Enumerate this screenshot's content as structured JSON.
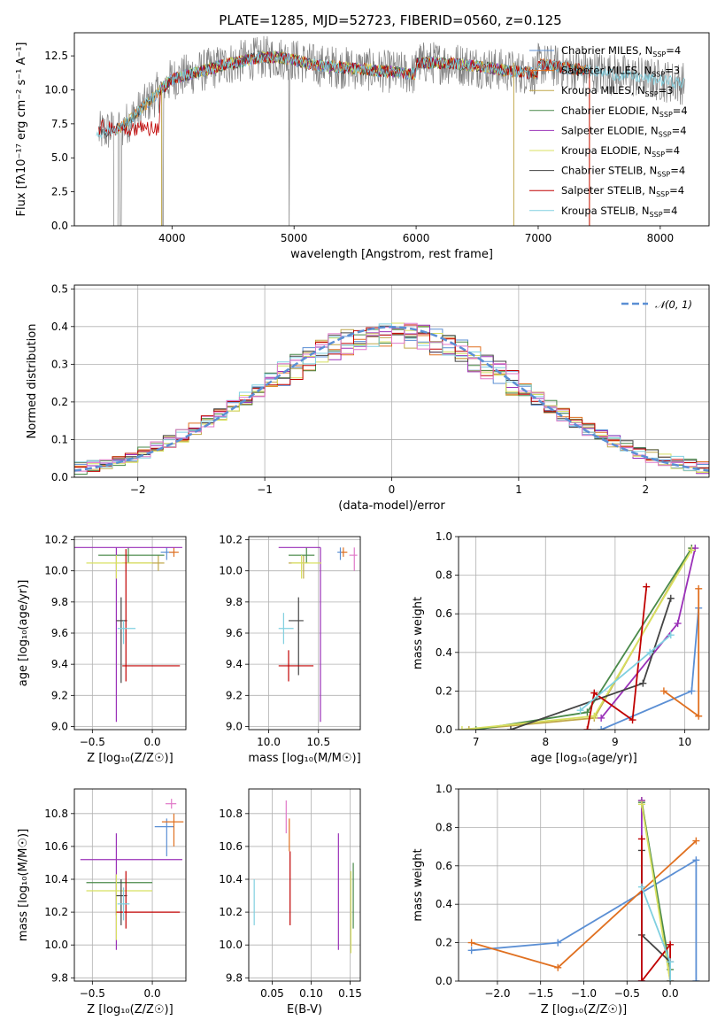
{
  "figure": {
    "title": "PLATE=1285, MJD=52723, FIBERID=0560, z=0.125"
  },
  "chart_data": [
    {
      "id": "spectrum",
      "type": "line",
      "xlabel": "wavelength [Angstrom, rest frame]",
      "ylabel": "Flux [fλ10⁻¹⁷ erg cm⁻² s⁻¹ A⁻¹]",
      "xlim": [
        3200,
        8400
      ],
      "ylim": [
        0,
        14.2
      ],
      "xticks": [
        4000,
        5000,
        6000,
        7000,
        8000
      ],
      "yticks": [
        0.0,
        2.5,
        5.0,
        7.5,
        10.0,
        12.5
      ],
      "grid": false,
      "legend_position": "top-right",
      "data_color": "#808080",
      "series": [
        {
          "name": "Chabrier MILES, N_SSP=4",
          "color": "#5b8fd4",
          "range": [
            3540,
            7400
          ]
        },
        {
          "name": "Salpeter MILES, N_SSP=3",
          "color": "#e07020",
          "range": [
            3540,
            7400
          ]
        },
        {
          "name": "Kroupa MILES, N_SSP=3",
          "color": "#c0a84a",
          "range": [
            3540,
            7400
          ]
        },
        {
          "name": "Chabrier ELODIE, N_SSP=4",
          "color": "#4a8a4a",
          "range": [
            3900,
            6800
          ]
        },
        {
          "name": "Salpeter ELODIE, N_SSP=4",
          "color": "#9a30b8",
          "range": [
            3900,
            6800
          ]
        },
        {
          "name": "Kroupa ELODIE, N_SSP=4",
          "color": "#d8e060",
          "range": [
            3900,
            6800
          ]
        },
        {
          "name": "Chabrier STELIB, N_SSP=4",
          "color": "#444444",
          "range": [
            3400,
            7400
          ]
        },
        {
          "name": "Salpeter STELIB, N_SSP=4",
          "color": "#c00000",
          "range": [
            3400,
            7400
          ]
        },
        {
          "name": "Kroupa STELIB, N_SSP=4",
          "color": "#80d0e0",
          "range": [
            3380,
            8200
          ]
        }
      ]
    },
    {
      "id": "residuals",
      "type": "histogram",
      "xlabel": "(data-model)/error",
      "ylabel": "Normed distribution",
      "xlim": [
        -2.5,
        2.5
      ],
      "ylim": [
        0,
        0.51
      ],
      "xticks": [
        -2,
        -1,
        0,
        1,
        2
      ],
      "yticks": [
        0.0,
        0.1,
        0.2,
        0.3,
        0.4,
        0.5
      ],
      "grid": true,
      "legend": {
        "label": "𝒩(0, 1)",
        "position": "top-right",
        "color": "#5b8fd4"
      },
      "bin_width": 0.1,
      "series_colors": [
        "#5b8fd4",
        "#e07020",
        "#c0a84a",
        "#4a8a4a",
        "#9a30b8",
        "#d8e060",
        "#444444",
        "#c00000",
        "#80d0e0",
        "#e078c8"
      ]
    },
    {
      "id": "age_vs_Z",
      "type": "errorbar",
      "xlabel": "Z [log₁₀(Z/Z☉)]",
      "ylabel": "age  [log₁₀(age/yr)]",
      "xlim": [
        -0.65,
        0.28
      ],
      "ylim": [
        8.98,
        10.22
      ],
      "xticks": [
        -0.5,
        0.0
      ],
      "yticks": [
        9.0,
        9.2,
        9.4,
        9.6,
        9.8,
        10.0,
        10.2
      ],
      "grid": true,
      "points": [
        {
          "x": 0.12,
          "y": 10.12,
          "xerr": [
            0.05,
            0.06
          ],
          "yerr": [
            0.05,
            0.03
          ],
          "color": "#5b8fd4"
        },
        {
          "x": 0.18,
          "y": 10.12,
          "xerr": [
            0.04,
            0.04
          ],
          "yerr": [
            0.03,
            0.03
          ],
          "color": "#e07020"
        },
        {
          "x": 0.05,
          "y": 10.05,
          "xerr": [
            0.3,
            0.05
          ],
          "yerr": [
            0.05,
            0.05
          ],
          "color": "#c0a84a"
        },
        {
          "x": -0.2,
          "y": 10.1,
          "xerr": [
            0.25,
            0.3
          ],
          "yerr": [
            0.05,
            0.05
          ],
          "color": "#4a8a4a"
        },
        {
          "x": -0.3,
          "y": 10.15,
          "xerr": [
            0.35,
            0.55
          ],
          "yerr": [
            1.12,
            0.0
          ],
          "color": "#9a30b8"
        },
        {
          "x": -0.3,
          "y": 10.05,
          "xerr": [
            0.25,
            0.3
          ],
          "yerr": [
            0.1,
            0.05
          ],
          "color": "#d8e060"
        },
        {
          "x": -0.26,
          "y": 9.68,
          "xerr": [
            0.04,
            0.05
          ],
          "yerr": [
            0.4,
            0.15
          ],
          "color": "#444444"
        },
        {
          "x": -0.22,
          "y": 9.39,
          "xerr": [
            0.03,
            0.45
          ],
          "yerr": [
            0.1,
            0.75
          ],
          "color": "#c00000"
        },
        {
          "x": -0.24,
          "y": 9.63,
          "xerr": [
            0.05,
            0.1
          ],
          "yerr": [
            0.1,
            0.05
          ],
          "color": "#80d0e0"
        }
      ]
    },
    {
      "id": "age_vs_mass",
      "type": "errorbar",
      "xlabel": "mass [log₁₀(M/M☉)]",
      "ylabel": "",
      "xlim": [
        9.8,
        10.92
      ],
      "ylim": [
        8.98,
        10.22
      ],
      "xticks": [
        10.0,
        10.5
      ],
      "yticks": [
        9.0,
        9.2,
        9.4,
        9.6,
        9.8,
        10.0,
        10.2
      ],
      "grid": true,
      "points": [
        {
          "x": 10.72,
          "y": 10.12,
          "xerr": [
            0.03,
            0.03
          ],
          "yerr": [
            0.05,
            0.03
          ],
          "color": "#5b8fd4"
        },
        {
          "x": 10.75,
          "y": 10.12,
          "xerr": [
            0.02,
            0.04
          ],
          "yerr": [
            0.03,
            0.03
          ],
          "color": "#e07020"
        },
        {
          "x": 10.86,
          "y": 10.1,
          "xerr": [
            0.05,
            0.03
          ],
          "yerr": [
            0.1,
            0.05
          ],
          "color": "#e078c8"
        },
        {
          "x": 10.35,
          "y": 10.05,
          "xerr": [
            0.15,
            0.05
          ],
          "yerr": [
            0.1,
            0.05
          ],
          "color": "#c0a84a"
        },
        {
          "x": 10.38,
          "y": 10.1,
          "xerr": [
            0.18,
            0.08
          ],
          "yerr": [
            0.05,
            0.05
          ],
          "color": "#4a8a4a"
        },
        {
          "x": 10.52,
          "y": 10.15,
          "xerr": [
            0.42,
            0.0
          ],
          "yerr": [
            1.12,
            0.0
          ],
          "color": "#9a30b8"
        },
        {
          "x": 10.33,
          "y": 10.05,
          "xerr": [
            0.1,
            0.2
          ],
          "yerr": [
            0.1,
            0.05
          ],
          "color": "#d8e060"
        },
        {
          "x": 10.3,
          "y": 9.68,
          "xerr": [
            0.1,
            0.05
          ],
          "yerr": [
            0.35,
            0.15
          ],
          "color": "#444444"
        },
        {
          "x": 10.2,
          "y": 9.39,
          "xerr": [
            0.1,
            0.25
          ],
          "yerr": [
            0.1,
            0.1
          ],
          "color": "#c00000"
        },
        {
          "x": 10.15,
          "y": 9.63,
          "xerr": [
            0.05,
            0.1
          ],
          "yerr": [
            0.1,
            0.1
          ],
          "color": "#80d0e0"
        }
      ]
    },
    {
      "id": "mass_weight_vs_age",
      "type": "line",
      "xlabel": "age  [log₁₀(age/yr)]",
      "ylabel": "mass weight",
      "xlim": [
        6.75,
        10.35
      ],
      "ylim": [
        0,
        1.0
      ],
      "xticks": [
        7,
        8,
        9,
        10
      ],
      "yticks": [
        0.0,
        0.2,
        0.4,
        0.6,
        0.8,
        1.0
      ],
      "grid": true,
      "series": [
        {
          "color": "#5b8fd4",
          "x": [
            8.8,
            10.1,
            10.2
          ],
          "y": [
            0.0,
            0.2,
            0.63
          ]
        },
        {
          "color": "#e07020",
          "x": [
            9.7,
            10.2,
            10.2
          ],
          "y": [
            0.2,
            0.07,
            0.73
          ]
        },
        {
          "color": "#c0a84a",
          "x": [
            6.9,
            8.7,
            10.1
          ],
          "y": [
            0.0,
            0.06,
            0.94
          ]
        },
        {
          "color": "#4a8a4a",
          "x": [
            7.0,
            8.6,
            10.1
          ],
          "y": [
            0.0,
            0.09,
            0.94
          ]
        },
        {
          "color": "#9a30b8",
          "x": [
            8.8,
            9.9,
            10.15
          ],
          "y": [
            0.06,
            0.55,
            0.94
          ]
        },
        {
          "color": "#d8e060",
          "x": [
            6.8,
            8.7,
            10.1
          ],
          "y": [
            0.0,
            0.07,
            0.93
          ]
        },
        {
          "color": "#444444",
          "x": [
            7.5,
            9.4,
            9.8
          ],
          "y": [
            0.0,
            0.24,
            0.68
          ]
        },
        {
          "color": "#c00000",
          "x": [
            8.6,
            8.7,
            9.25,
            9.45
          ],
          "y": [
            0.0,
            0.19,
            0.05,
            0.74
          ]
        },
        {
          "color": "#80d0e0",
          "x": [
            8.5,
            9.5,
            9.8
          ],
          "y": [
            0.1,
            0.4,
            0.49
          ]
        }
      ]
    },
    {
      "id": "mass_vs_Z",
      "type": "errorbar",
      "xlabel": "Z [log₁₀(Z/Z☉)]",
      "ylabel": "mass [log₁₀(M/M☉)]",
      "xlim": [
        -0.65,
        0.28
      ],
      "ylim": [
        9.78,
        10.95
      ],
      "xticks": [
        -0.5,
        0.0
      ],
      "yticks": [
        9.8,
        10.0,
        10.2,
        10.4,
        10.6,
        10.8
      ],
      "grid": true,
      "points": [
        {
          "x": 0.12,
          "y": 10.72,
          "xerr": [
            0.1,
            0.06
          ],
          "yerr": [
            0.18,
            0.05
          ],
          "color": "#5b8fd4"
        },
        {
          "x": 0.18,
          "y": 10.75,
          "xerr": [
            0.1,
            0.08
          ],
          "yerr": [
            0.15,
            0.05
          ],
          "color": "#e07020"
        },
        {
          "x": 0.16,
          "y": 10.86,
          "xerr": [
            0.05,
            0.04
          ],
          "yerr": [
            0.03,
            0.03
          ],
          "color": "#e078c8"
        },
        {
          "x": -0.3,
          "y": 10.38,
          "xerr": [
            0.25,
            0.3
          ],
          "yerr": [
            0.2,
            0.05
          ],
          "color": "#4a8a4a"
        },
        {
          "x": -0.3,
          "y": 10.52,
          "xerr": [
            0.3,
            0.55
          ],
          "yerr": [
            0.55,
            0.16
          ],
          "color": "#9a30b8"
        },
        {
          "x": -0.3,
          "y": 10.33,
          "xerr": [
            0.25,
            0.3
          ],
          "yerr": [
            0.3,
            0.1
          ],
          "color": "#d8e060"
        },
        {
          "x": -0.26,
          "y": 10.3,
          "xerr": [
            0.04,
            0.05
          ],
          "yerr": [
            0.18,
            0.1
          ],
          "color": "#444444"
        },
        {
          "x": -0.22,
          "y": 10.2,
          "xerr": [
            0.08,
            0.45
          ],
          "yerr": [
            0.1,
            0.25
          ],
          "color": "#c00000"
        },
        {
          "x": -0.24,
          "y": 10.25,
          "xerr": [
            0.05,
            0.05
          ],
          "yerr": [
            0.1,
            0.1
          ],
          "color": "#80d0e0"
        }
      ]
    },
    {
      "id": "mass_vs_EBV",
      "type": "errorbar",
      "xlabel": "E(B-V)",
      "ylabel": "",
      "xlim": [
        0.02,
        0.163
      ],
      "ylim": [
        9.78,
        10.95
      ],
      "xticks": [
        0.05,
        0.1,
        0.15
      ],
      "yticks": [
        9.8,
        10.0,
        10.2,
        10.4,
        10.6,
        10.8
      ],
      "grid": true,
      "points": [
        {
          "x": 0.068,
          "y": 10.78,
          "yerr": [
            0.1,
            0.1
          ],
          "color": "#e078c8"
        },
        {
          "x": 0.072,
          "y": 10.72,
          "yerr": [
            0.15,
            0.05
          ],
          "color": "#e07020"
        },
        {
          "x": 0.073,
          "y": 10.3,
          "yerr": [
            0.18,
            0.27
          ],
          "color": "#c00000"
        },
        {
          "x": 0.135,
          "y": 10.3,
          "yerr": [
            0.33,
            0.38
          ],
          "color": "#9a30b8"
        },
        {
          "x": 0.151,
          "y": 10.2,
          "yerr": [
            0.25,
            0.25
          ],
          "color": "#d8e060"
        },
        {
          "x": 0.154,
          "y": 10.3,
          "yerr": [
            0.2,
            0.2
          ],
          "color": "#4a8a4a"
        },
        {
          "x": 0.027,
          "y": 10.27,
          "yerr": [
            0.15,
            0.13
          ],
          "color": "#80d0e0"
        }
      ]
    },
    {
      "id": "mass_weight_vs_Z",
      "type": "line",
      "xlabel": "Z [log₁₀(Z/Z☉)]",
      "ylabel": "mass weight",
      "xlim": [
        -2.45,
        0.45
      ],
      "ylim": [
        0,
        1.0
      ],
      "xticks": [
        -2.0,
        -1.5,
        -1.0,
        -0.5,
        0.0
      ],
      "yticks": [
        0.0,
        0.2,
        0.4,
        0.6,
        0.8,
        1.0
      ],
      "grid": true,
      "series": [
        {
          "color": "#5b8fd4",
          "x": [
            -2.3,
            -1.3,
            0.3,
            0.3
          ],
          "y": [
            0.16,
            0.2,
            0.63,
            0.0
          ]
        },
        {
          "color": "#e07020",
          "x": [
            -2.3,
            -1.3,
            0.3
          ],
          "y": [
            0.2,
            0.07,
            0.73
          ]
        },
        {
          "color": "#c0a84a",
          "x": [
            -0.33,
            0.0
          ],
          "y": [
            0.94,
            0.0
          ]
        },
        {
          "color": "#4a8a4a",
          "x": [
            -0.33,
            0.0
          ],
          "y": [
            0.93,
            0.06
          ]
        },
        {
          "color": "#9a30b8",
          "x": [
            -0.33,
            -0.33
          ],
          "y": [
            0.94,
            0.0
          ]
        },
        {
          "color": "#d8e060",
          "x": [
            -0.33,
            0.0
          ],
          "y": [
            0.92,
            0.0
          ]
        },
        {
          "color": "#444444",
          "x": [
            -0.33,
            -0.33,
            0.0
          ],
          "y": [
            0.68,
            0.24,
            0.1
          ]
        },
        {
          "color": "#c00000",
          "x": [
            -0.33,
            -0.33,
            0.0,
            0.0
          ],
          "y": [
            0.74,
            0.0,
            0.19,
            0.0
          ]
        },
        {
          "color": "#80d0e0",
          "x": [
            -0.33,
            0.0,
            0.0
          ],
          "y": [
            0.49,
            0.1,
            0.0
          ]
        }
      ]
    }
  ]
}
